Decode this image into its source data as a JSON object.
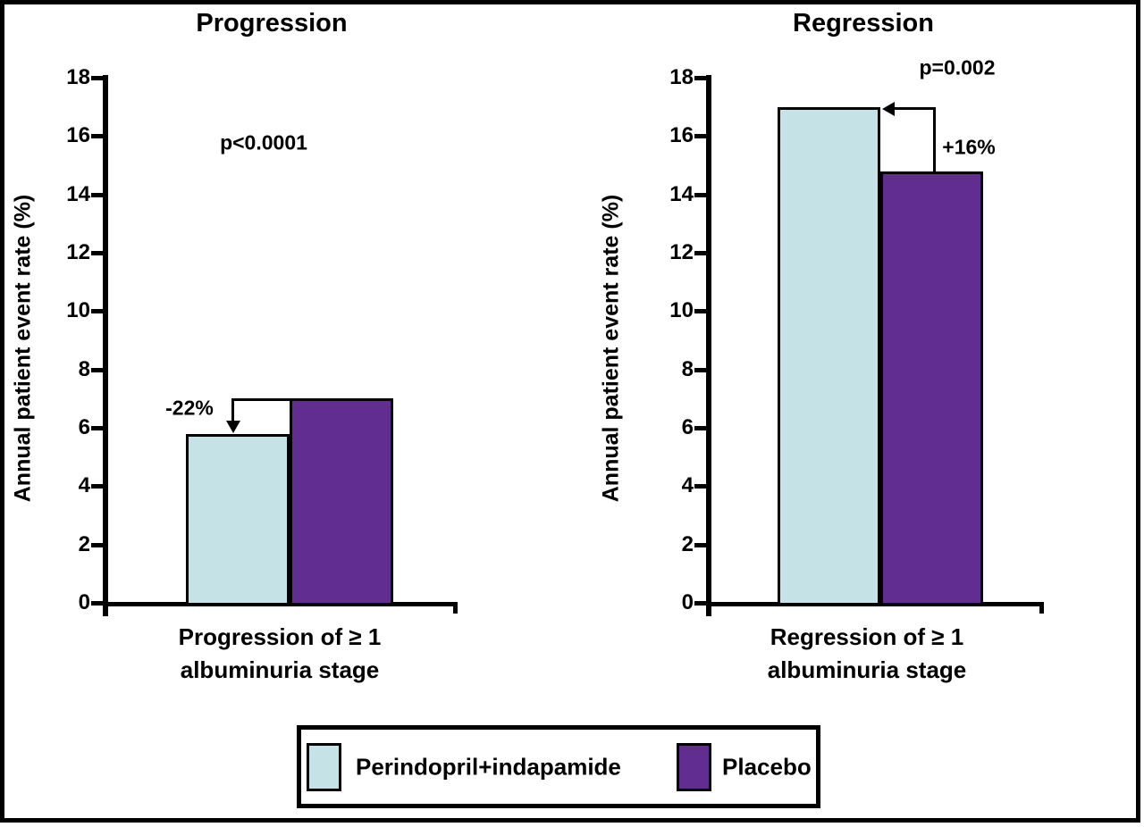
{
  "figure": {
    "legend": {
      "items": [
        {
          "label": "Perindopril+indapamide",
          "color": "#c5e2e7"
        },
        {
          "label": "Placebo",
          "color": "#622d91"
        }
      ]
    }
  },
  "chart_data": [
    {
      "type": "bar",
      "title": "Progression",
      "ylabel": "Annual patient event rate (%)",
      "xlabel_lines": [
        "Progression of ≥ 1",
        "albuminuria stage"
      ],
      "categories": [
        "Perindopril+indapamide",
        "Placebo"
      ],
      "values": [
        5.8,
        7.0
      ],
      "ylim": [
        0,
        18
      ],
      "ytick_step": 2,
      "p_value": "p<0.0001",
      "difference_label": "-22%",
      "bar_colors": [
        "#c5e2e7",
        "#622d91"
      ],
      "legend_position": "bottom",
      "grid": false
    },
    {
      "type": "bar",
      "title": "Regression",
      "ylabel": "Annual patient event rate (%)",
      "xlabel_lines": [
        "Regression of ≥ 1",
        "albuminuria stage"
      ],
      "categories": [
        "Perindopril+indapamide",
        "Placebo"
      ],
      "values": [
        17.0,
        14.8
      ],
      "ylim": [
        0,
        18
      ],
      "ytick_step": 2,
      "p_value": "p=0.002",
      "difference_label": "+16%",
      "bar_colors": [
        "#c5e2e7",
        "#622d91"
      ],
      "legend_position": "bottom",
      "grid": false
    }
  ]
}
